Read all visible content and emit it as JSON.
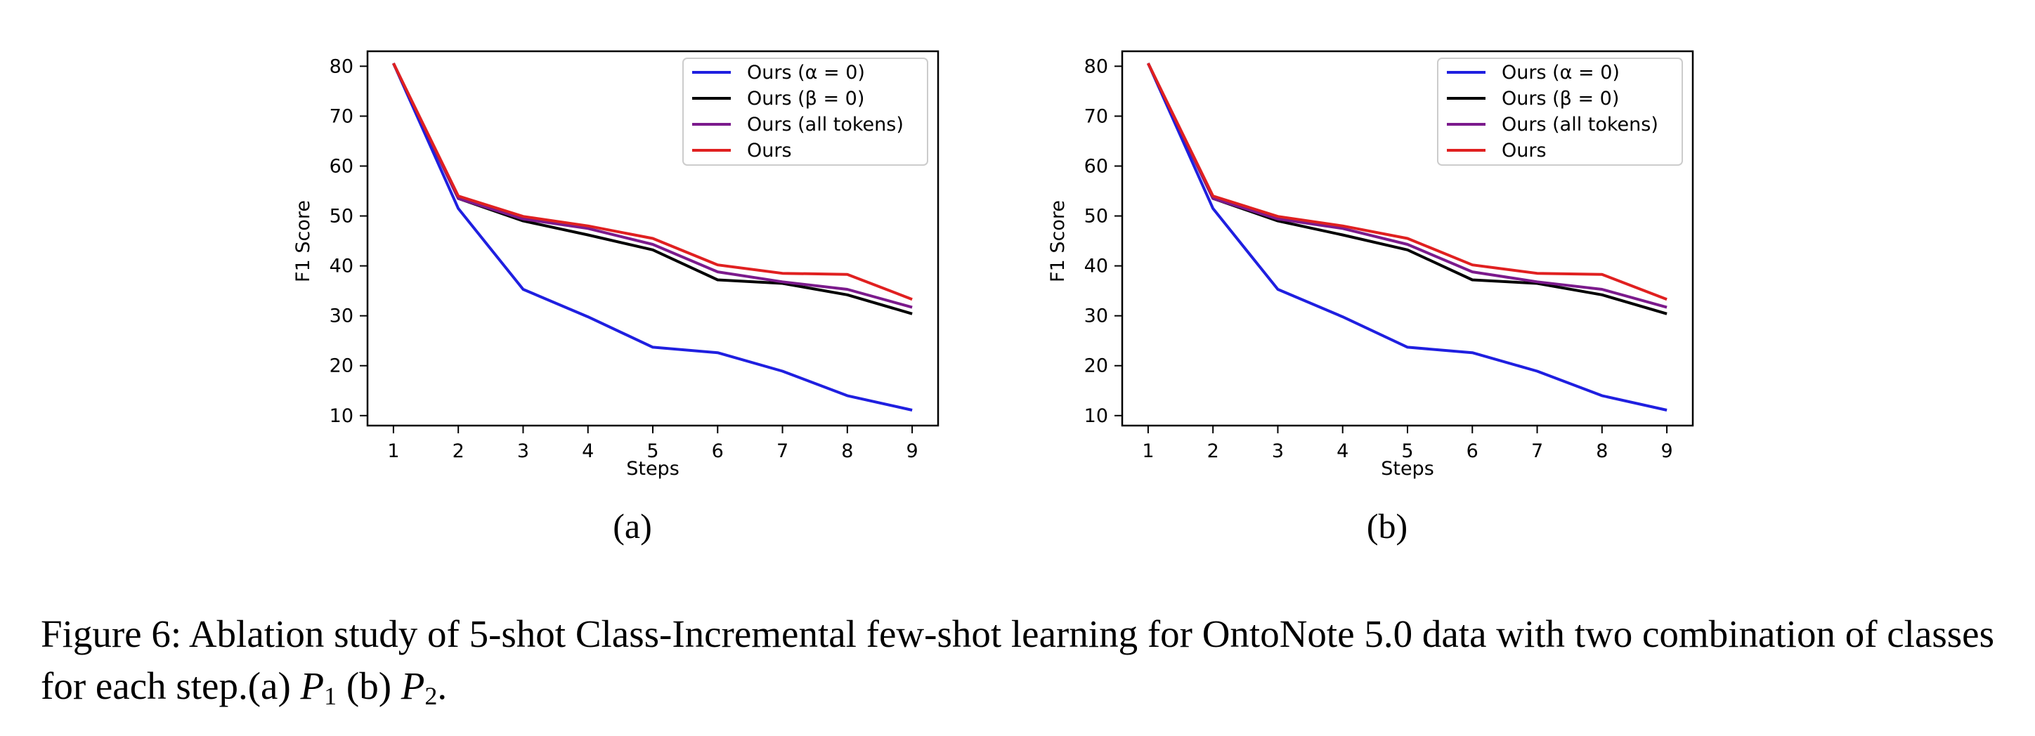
{
  "chart_data": [
    {
      "type": "line",
      "xlabel": "Steps",
      "ylabel": "F1 Score",
      "x": [
        1,
        2,
        3,
        4,
        5,
        6,
        7,
        8,
        9
      ],
      "xlim": [
        0.6,
        9.4
      ],
      "ylim": [
        8,
        83
      ],
      "xticks": [
        "1",
        "2",
        "3",
        "4",
        "5",
        "6",
        "7",
        "8",
        "9"
      ],
      "yticks": [
        10,
        20,
        30,
        40,
        50,
        60,
        70,
        80
      ],
      "legend_position": "top-right",
      "grid": false,
      "series": [
        {
          "name": "Ours (α = 0)",
          "color": "#1f1fe0",
          "values": [
            80.6,
            51.5,
            35.3,
            29.8,
            23.7,
            22.6,
            18.9,
            14.0,
            11.1
          ]
        },
        {
          "name": "Ours (β = 0)",
          "color": "#000000",
          "values": [
            80.6,
            53.5,
            49.0,
            46.2,
            43.2,
            37.2,
            36.5,
            34.2,
            30.4
          ]
        },
        {
          "name": "Ours (all tokens)",
          "color": "#7b1a8c",
          "values": [
            80.6,
            53.5,
            49.4,
            47.5,
            44.3,
            38.8,
            36.8,
            35.3,
            31.7
          ]
        },
        {
          "name": "Ours",
          "color": "#e02020",
          "values": [
            80.6,
            54.0,
            49.9,
            48.0,
            45.5,
            40.2,
            38.5,
            38.3,
            33.3
          ]
        }
      ]
    },
    {
      "type": "line",
      "xlabel": "Steps",
      "ylabel": "F1 Score",
      "x": [
        1,
        2,
        3,
        4,
        5,
        6,
        7,
        8,
        9
      ],
      "xlim": [
        0.6,
        9.4
      ],
      "ylim": [
        8,
        83
      ],
      "xticks": [
        "1",
        "2",
        "3",
        "4",
        "5",
        "6",
        "7",
        "8",
        "9"
      ],
      "yticks": [
        10,
        20,
        30,
        40,
        50,
        60,
        70,
        80
      ],
      "legend_position": "top-right",
      "grid": false,
      "series": [
        {
          "name": "Ours (α = 0)",
          "color": "#1f1fe0",
          "values": [
            80.6,
            51.5,
            35.3,
            29.8,
            23.7,
            22.6,
            18.9,
            14.0,
            11.1
          ]
        },
        {
          "name": "Ours (β = 0)",
          "color": "#000000",
          "values": [
            80.6,
            53.5,
            49.0,
            46.2,
            43.2,
            37.2,
            36.5,
            34.2,
            30.4
          ]
        },
        {
          "name": "Ours (all tokens)",
          "color": "#7b1a8c",
          "values": [
            80.6,
            53.5,
            49.4,
            47.5,
            44.3,
            38.8,
            36.8,
            35.3,
            31.7
          ]
        },
        {
          "name": "Ours",
          "color": "#e02020",
          "values": [
            80.6,
            54.0,
            49.9,
            48.0,
            45.5,
            40.2,
            38.5,
            38.3,
            33.3
          ]
        }
      ]
    }
  ],
  "subfigure_labels": [
    "(a)",
    "(b)"
  ],
  "caption": {
    "prefix": "Figure 6: Ablation study of 5-shot Class-Incremental few-shot learning for OntoNote 5.0 data with two combination of classes for each step.(a) ",
    "p1": "P",
    "p1_sub": "1",
    "mid": " (b) ",
    "p2": "P",
    "p2_sub": "2",
    "suffix": "."
  }
}
